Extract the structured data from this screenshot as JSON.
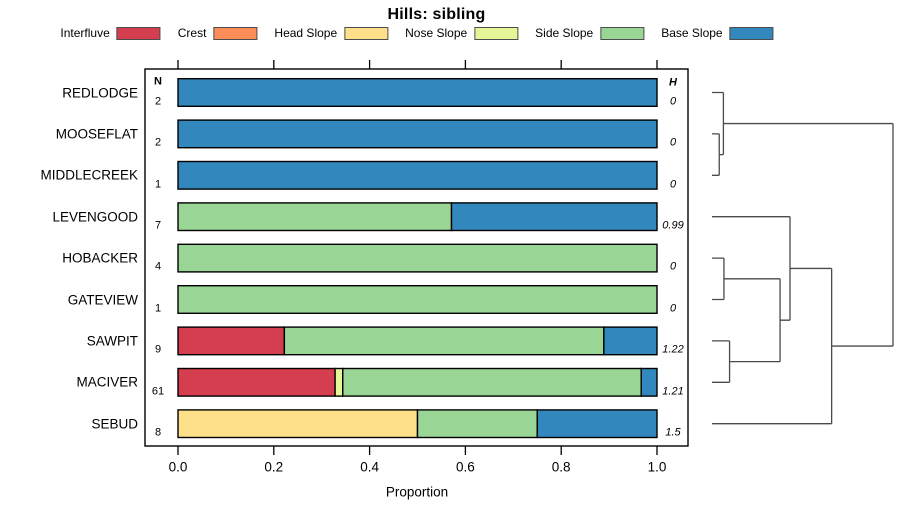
{
  "chart_data": {
    "type": "bar",
    "orientation": "horizontal-stacked",
    "title": "Hills: sibling",
    "xlabel": "Proportion",
    "x_ticks": [
      "0.0",
      "0.2",
      "0.4",
      "0.6",
      "0.8",
      "1.0"
    ],
    "xlim": [
      0,
      1
    ],
    "columns": {
      "n": "N",
      "h": "H"
    },
    "palette": {
      "interfluve": "#D53E4F",
      "crest": "#FC8D59",
      "head_slope": "#FEE08B",
      "nose_slope": "#E6F598",
      "side_slope": "#99D594",
      "base_slope": "#3288BD"
    },
    "legend": [
      {
        "label": "Interfluve",
        "cat": "interfluve"
      },
      {
        "label": "Crest",
        "cat": "crest"
      },
      {
        "label": "Head Slope",
        "cat": "head_slope"
      },
      {
        "label": "Nose Slope",
        "cat": "nose_slope"
      },
      {
        "label": "Side Slope",
        "cat": "side_slope"
      },
      {
        "label": "Base Slope",
        "cat": "base_slope"
      }
    ],
    "rows": [
      {
        "name": "REDLODGE",
        "n": "2",
        "h": "0",
        "segments": [
          {
            "cat": "base_slope",
            "value": 1.0
          }
        ]
      },
      {
        "name": "MOOSEFLAT",
        "n": "2",
        "h": "0",
        "segments": [
          {
            "cat": "base_slope",
            "value": 1.0
          }
        ]
      },
      {
        "name": "MIDDLECREEK",
        "n": "1",
        "h": "0",
        "segments": [
          {
            "cat": "base_slope",
            "value": 1.0
          }
        ]
      },
      {
        "name": "LEVENGOOD",
        "n": "7",
        "h": "0.99",
        "segments": [
          {
            "cat": "side_slope",
            "value": 0.571
          },
          {
            "cat": "base_slope",
            "value": 0.429
          }
        ]
      },
      {
        "name": "HOBACKER",
        "n": "4",
        "h": "0",
        "segments": [
          {
            "cat": "side_slope",
            "value": 1.0
          }
        ]
      },
      {
        "name": "GATEVIEW",
        "n": "1",
        "h": "0",
        "segments": [
          {
            "cat": "side_slope",
            "value": 1.0
          }
        ]
      },
      {
        "name": "SAWPIT",
        "n": "9",
        "h": "1.22",
        "segments": [
          {
            "cat": "interfluve",
            "value": 0.222
          },
          {
            "cat": "side_slope",
            "value": 0.667
          },
          {
            "cat": "base_slope",
            "value": 0.111
          }
        ]
      },
      {
        "name": "MACIVER",
        "n": "61",
        "h": "1.21",
        "segments": [
          {
            "cat": "interfluve",
            "value": 0.328
          },
          {
            "cat": "nose_slope",
            "value": 0.016
          },
          {
            "cat": "side_slope",
            "value": 0.623
          },
          {
            "cat": "base_slope",
            "value": 0.033
          }
        ]
      },
      {
        "name": "SEBUD",
        "n": "8",
        "h": "1.5",
        "segments": [
          {
            "cat": "head_slope",
            "value": 0.5
          },
          {
            "cat": "side_slope",
            "value": 0.25
          },
          {
            "cat": "base_slope",
            "value": 0.25
          }
        ]
      }
    ],
    "dendrogram": {
      "leaf_order": [
        "REDLODGE",
        "MOOSEFLAT",
        "MIDDLECREEK",
        "LEVENGOOD",
        "HOBACKER",
        "GATEVIEW",
        "SAWPIT",
        "MACIVER",
        "SEBUD"
      ],
      "merges": [
        {
          "id": "M1",
          "a": "L1",
          "b": "L2",
          "h": 0.04
        },
        {
          "id": "M2",
          "a": "L0",
          "b": "M1",
          "h": 0.063
        },
        {
          "id": "M3",
          "a": "L4",
          "b": "L5",
          "h": 0.066
        },
        {
          "id": "M4",
          "a": "L6",
          "b": "L7",
          "h": 0.097
        },
        {
          "id": "M5",
          "a": "M3",
          "b": "M4",
          "h": 0.376
        },
        {
          "id": "M6",
          "a": "L3",
          "b": "M5",
          "h": 0.431
        },
        {
          "id": "M7",
          "a": "M6",
          "b": "L8",
          "h": 0.661
        },
        {
          "id": "M8",
          "a": "M2",
          "b": "M7",
          "h": 1.0
        }
      ]
    },
    "line_color": "#4a4a4a"
  }
}
